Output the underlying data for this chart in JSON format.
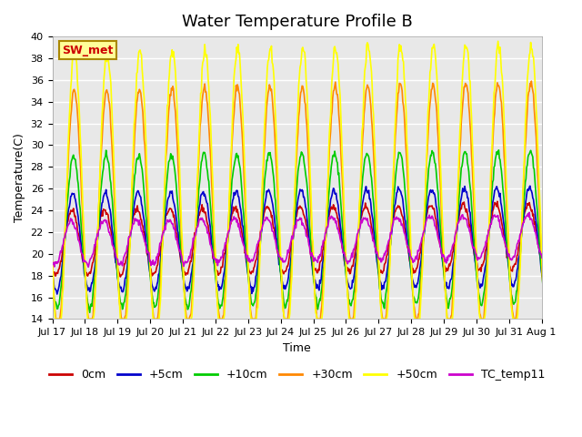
{
  "title": "Water Temperature Profile B",
  "xlabel": "Time",
  "ylabel": "Temperature(C)",
  "ylim": [
    14,
    40
  ],
  "yticks": [
    14,
    16,
    18,
    20,
    22,
    24,
    26,
    28,
    30,
    32,
    34,
    36,
    38,
    40
  ],
  "series_labels": [
    "0cm",
    "+5cm",
    "+10cm",
    "+30cm",
    "+50cm",
    "TC_temp11"
  ],
  "series_colors": [
    "#cc0000",
    "#0000cc",
    "#00cc00",
    "#ff8800",
    "#ffff00",
    "#cc00cc"
  ],
  "series_linewidths": [
    1.2,
    1.2,
    1.2,
    1.2,
    1.2,
    1.2
  ],
  "annotation_text": "SW_met",
  "annotation_color": "#cc0000",
  "annotation_bg": "#ffff99",
  "annotation_border": "#aa8800",
  "plot_bg": "#e8e8e8",
  "tick_labels": [
    "Jul 17",
    "Jul 18",
    "Jul 19",
    "Jul 20",
    "Jul 21",
    "Jul 22",
    "Jul 23",
    "Jul 24",
    "Jul 25",
    "Jul 26",
    "Jul 27",
    "Jul 28",
    "Jul 29",
    "Jul 30",
    "Jul 31",
    "Aug 1"
  ],
  "tick_positions": [
    0,
    1,
    2,
    3,
    4,
    5,
    6,
    7,
    8,
    9,
    10,
    11,
    12,
    13,
    14,
    15
  ],
  "title_fontsize": 13,
  "axis_fontsize": 8,
  "legend_fontsize": 9
}
